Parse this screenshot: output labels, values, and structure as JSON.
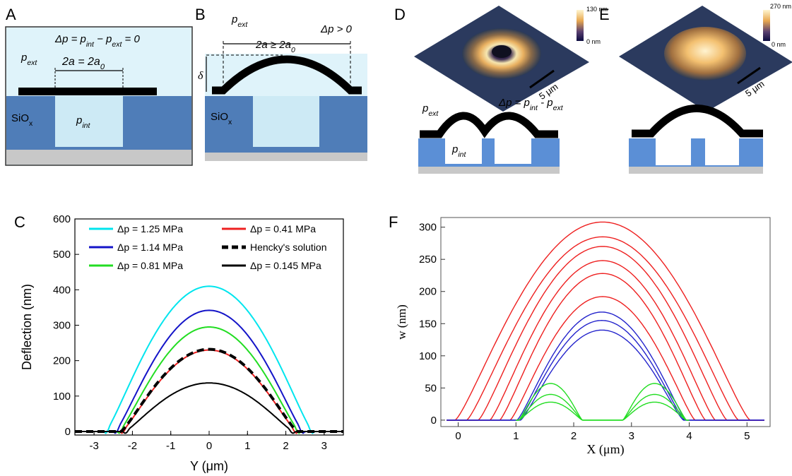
{
  "panels": {
    "A": {
      "letter": "A",
      "eq": "Δp = p_int − p_ext = 0",
      "p_ext": "p_ext",
      "span": "2a = 2a_0",
      "substrate": "SiO_x",
      "p_int": "p_int"
    },
    "B": {
      "letter": "B",
      "p_ext": "p_ext",
      "span": "2a ≥ 2a_0",
      "dp": "Δp > 0",
      "delta": "δ",
      "substrate": "SiO_x"
    },
    "C": {
      "letter": "C"
    },
    "D": {
      "letter": "D",
      "scale_max": "130 nm",
      "scale_min": "0 nm",
      "scalebar": "5 μm",
      "p_ext": "p_ext",
      "eq": "Δp = p_int - p_ext",
      "p_int": "p_int"
    },
    "E": {
      "letter": "E",
      "scale_max": "270 nm",
      "scale_min": "0 nm",
      "scalebar": "5 μm"
    },
    "F": {
      "letter": "F"
    }
  },
  "colors": {
    "substrate": "#4f7db8",
    "substrate_light": "#5b8fd6",
    "cavity": "#cdeaf5",
    "sky": "#dff3fa",
    "base": "#c8c8c8",
    "membrane": "#000000"
  },
  "chart_data": [
    {
      "type": "line",
      "panel": "C",
      "xlabel": "Y (μm)",
      "ylabel": "Deflection (nm)",
      "xlim": [
        -3.5,
        3.5
      ],
      "ylim": [
        -10,
        600
      ],
      "xticks": [
        -3,
        -2,
        -1,
        0,
        1,
        2,
        3
      ],
      "yticks": [
        0,
        100,
        200,
        300,
        400,
        500,
        600
      ],
      "grid": false,
      "legend_position": "top",
      "series": [
        {
          "name": "Δp = 1.25 MPa",
          "color": "#00e5ee",
          "style": "solid",
          "a": 2.7,
          "peak": 410
        },
        {
          "name": "Δp = 1.14 MPa",
          "color": "#1414c8",
          "style": "solid",
          "a": 2.45,
          "peak": 342
        },
        {
          "name": "Δp = 0.81 MPa",
          "color": "#22dd22",
          "style": "solid",
          "a": 2.35,
          "peak": 295
        },
        {
          "name": "Δp = 0.41 MPa",
          "color": "#ee2020",
          "style": "solid",
          "a": 2.28,
          "peak": 230
        },
        {
          "name": "Hencky's solution",
          "color": "#000000",
          "style": "dashed",
          "a": 2.3,
          "peak": 232
        },
        {
          "name": "Δp = 0.145 MPa",
          "color": "#000000",
          "style": "solid",
          "a": 2.2,
          "peak": 137
        }
      ]
    },
    {
      "type": "line",
      "panel": "F",
      "xlabel": "X (μm)",
      "ylabel": "w (nm)",
      "xlim": [
        -0.3,
        5.4
      ],
      "ylim": [
        -10,
        315
      ],
      "xticks": [
        0,
        1,
        2,
        3,
        4,
        5
      ],
      "yticks": [
        0,
        50,
        100,
        150,
        200,
        250,
        300
      ],
      "grid": false,
      "legend_position": "none",
      "domes": [
        {
          "color": "#ee2020",
          "x0": -0.05,
          "x1": 5.05,
          "peak": 308
        },
        {
          "color": "#ee2020",
          "x0": 0.15,
          "x1": 4.85,
          "peak": 285
        },
        {
          "color": "#ee2020",
          "x0": 0.35,
          "x1": 4.65,
          "peak": 270
        },
        {
          "color": "#ee2020",
          "x0": 0.55,
          "x1": 4.45,
          "peak": 248
        },
        {
          "color": "#ee2020",
          "x0": 0.72,
          "x1": 4.28,
          "peak": 228
        },
        {
          "color": "#ee2020",
          "x0": 0.9,
          "x1": 4.1,
          "peak": 192
        },
        {
          "color": "#2323cc",
          "x0": 1.02,
          "x1": 3.95,
          "peak": 168
        },
        {
          "color": "#2323cc",
          "x0": 1.05,
          "x1": 3.92,
          "peak": 155
        },
        {
          "color": "#2323cc",
          "x0": 1.08,
          "x1": 3.9,
          "peak": 140
        }
      ],
      "double_bumps": [
        {
          "color": "#22dd22",
          "peak": 57
        },
        {
          "color": "#22dd22",
          "peak": 40
        },
        {
          "color": "#22dd22",
          "peak": 28
        }
      ],
      "baseline_x": [
        -0.2,
        5.3
      ]
    }
  ]
}
